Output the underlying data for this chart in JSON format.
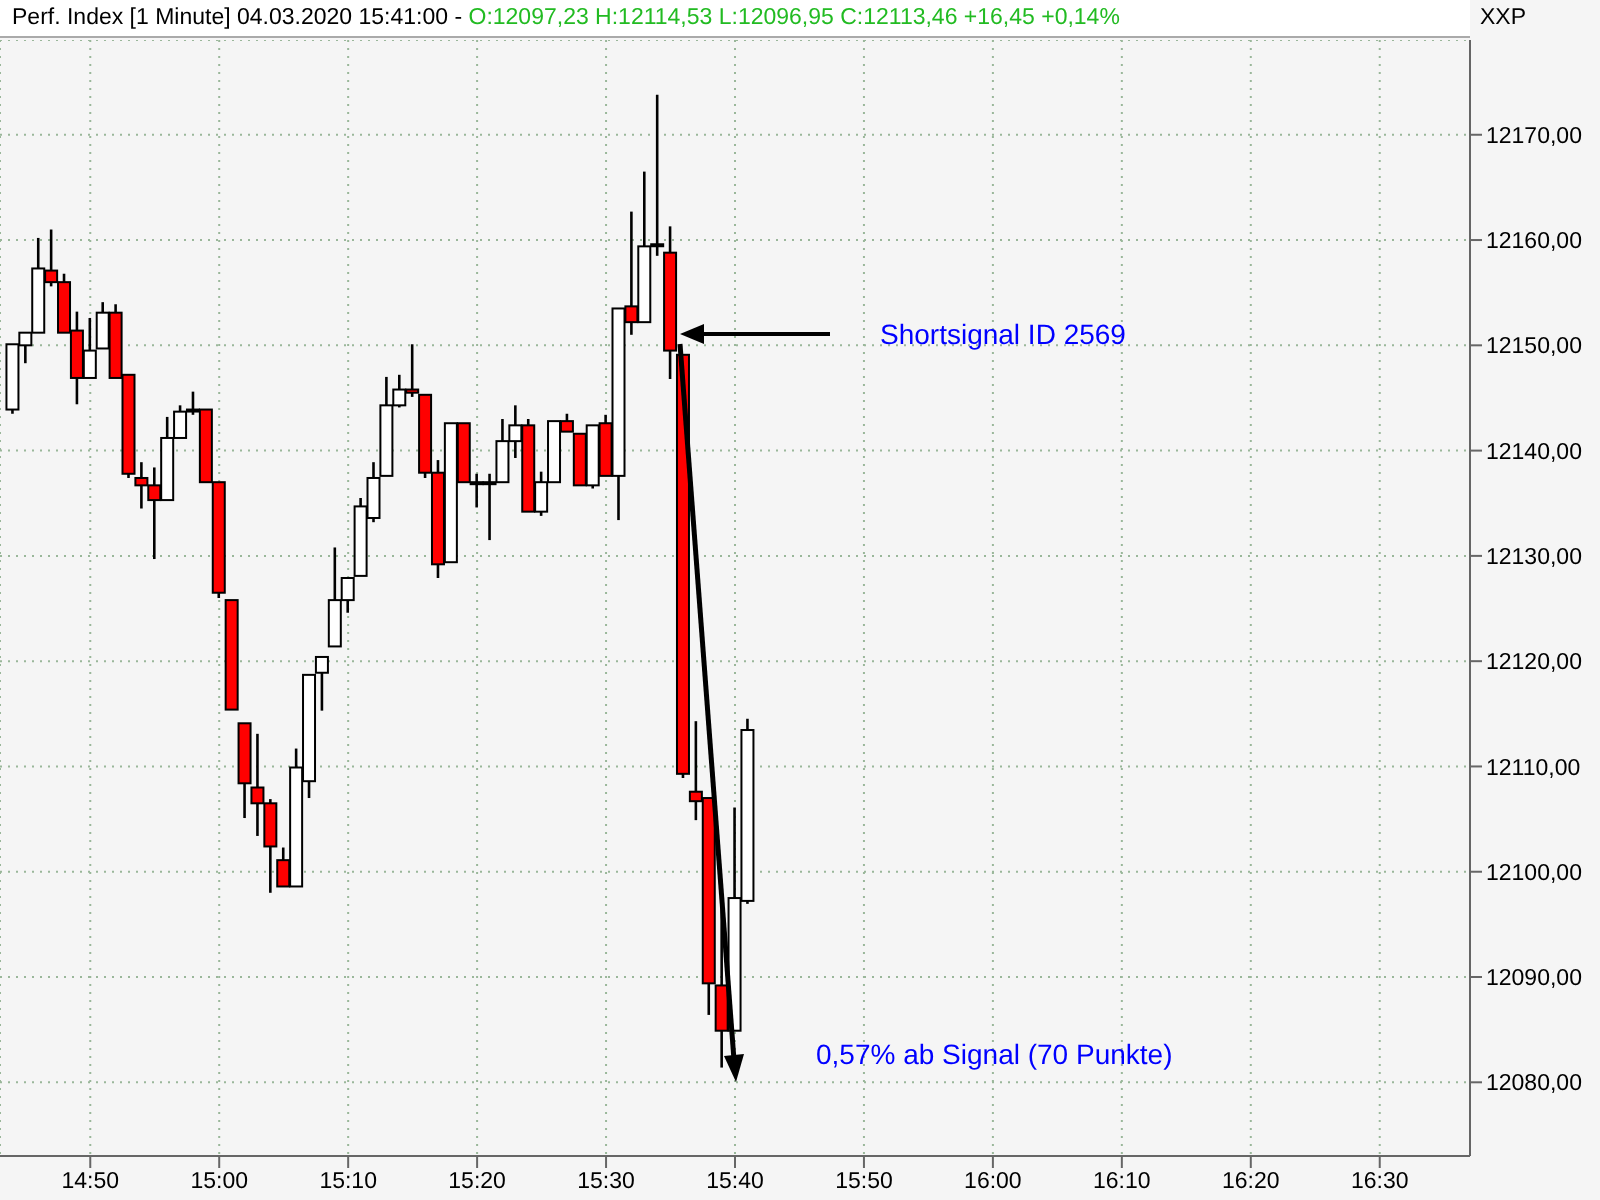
{
  "chart_data": {
    "type": "candlestick",
    "title": "Perf. Index [1 Minute] 04.03.2020 15:41:00 -",
    "subtitle": "O:12097,23 H:12114,53 L:12096,95 C:12113,46 +16,45 +0,14%",
    "ylabel": "XXP",
    "x": [
      "2020-03-04T14:44",
      "2020-03-04T14:45",
      "2020-03-04T14:46",
      "2020-03-04T14:47",
      "2020-03-04T14:48",
      "2020-03-04T14:49",
      "2020-03-04T14:50",
      "2020-03-04T14:51",
      "2020-03-04T14:52",
      "2020-03-04T14:53",
      "2020-03-04T14:54",
      "2020-03-04T14:55",
      "2020-03-04T14:56",
      "2020-03-04T14:57",
      "2020-03-04T14:58",
      "2020-03-04T14:59",
      "2020-03-04T15:00",
      "2020-03-04T15:01",
      "2020-03-04T15:02",
      "2020-03-04T15:03",
      "2020-03-04T15:04",
      "2020-03-04T15:05",
      "2020-03-04T15:06",
      "2020-03-04T15:07",
      "2020-03-04T15:08",
      "2020-03-04T15:09",
      "2020-03-04T15:10",
      "2020-03-04T15:11",
      "2020-03-04T15:12",
      "2020-03-04T15:13",
      "2020-03-04T15:14",
      "2020-03-04T15:15",
      "2020-03-04T15:16",
      "2020-03-04T15:17",
      "2020-03-04T15:18",
      "2020-03-04T15:19",
      "2020-03-04T15:20",
      "2020-03-04T15:21",
      "2020-03-04T15:22",
      "2020-03-04T15:23",
      "2020-03-04T15:24",
      "2020-03-04T15:25",
      "2020-03-04T15:26",
      "2020-03-04T15:27",
      "2020-03-04T15:28",
      "2020-03-04T15:29",
      "2020-03-04T15:30",
      "2020-03-04T15:31",
      "2020-03-04T15:32",
      "2020-03-04T15:33",
      "2020-03-04T15:34",
      "2020-03-04T15:35",
      "2020-03-04T15:36",
      "2020-03-04T15:37",
      "2020-03-04T15:38",
      "2020-03-04T15:39",
      "2020-03-04T15:40",
      "2020-03-04T15:41"
    ],
    "ohlc": [
      [
        12143.9,
        12150.1,
        12143.5,
        12150.1
      ],
      [
        12150.0,
        12151.2,
        12148.3,
        12151.2
      ],
      [
        12151.2,
        12160.2,
        12151.2,
        12157.3
      ],
      [
        12157.1,
        12161.0,
        12155.6,
        12156.0
      ],
      [
        12156.0,
        12156.8,
        12151.2,
        12151.2
      ],
      [
        12151.4,
        12153.2,
        12144.4,
        12146.9
      ],
      [
        12146.9,
        12152.6,
        12146.9,
        12149.5
      ],
      [
        12149.7,
        12154.1,
        12149.7,
        12153.1
      ],
      [
        12153.1,
        12153.9,
        12146.9,
        12146.9
      ],
      [
        12147.2,
        12147.2,
        12137.4,
        12137.8
      ],
      [
        12137.4,
        12138.9,
        12134.5,
        12136.7
      ],
      [
        12136.7,
        12138.4,
        12129.7,
        12135.3
      ],
      [
        12135.3,
        12143.2,
        12135.3,
        12141.2
      ],
      [
        12141.2,
        12144.3,
        12141.2,
        12143.7
      ],
      [
        12143.9,
        12145.6,
        12143.4,
        12143.9
      ],
      [
        12143.9,
        12143.9,
        12137.0,
        12137.0
      ],
      [
        12137.0,
        12137.0,
        12126.0,
        12126.5
      ],
      [
        12125.8,
        12125.8,
        12115.4,
        12115.4
      ],
      [
        12114.1,
        12114.1,
        12105.1,
        12108.4
      ],
      [
        12108.0,
        12113.1,
        12103.4,
        12106.5
      ],
      [
        12106.5,
        12106.9,
        12098.0,
        12102.4
      ],
      [
        12101.1,
        12102.3,
        12098.6,
        12098.6
      ],
      [
        12098.6,
        12111.7,
        12098.6,
        12109.9
      ],
      [
        12108.6,
        12118.7,
        12107.0,
        12118.7
      ],
      [
        12118.9,
        12120.4,
        12115.3,
        12120.4
      ],
      [
        12121.4,
        12130.8,
        12121.4,
        12125.8
      ],
      [
        12125.8,
        12127.9,
        12124.6,
        12127.9
      ],
      [
        12128.1,
        12135.5,
        12128.1,
        12134.7
      ],
      [
        12133.6,
        12138.9,
        12133.2,
        12137.4
      ],
      [
        12137.6,
        12147.0,
        12137.6,
        12144.3
      ],
      [
        12144.3,
        12147.2,
        12144.1,
        12145.8
      ],
      [
        12145.8,
        12150.1,
        12145.1,
        12145.5
      ],
      [
        12145.3,
        12145.3,
        12137.4,
        12137.9
      ],
      [
        12137.9,
        12139.1,
        12127.9,
        12129.2
      ],
      [
        12129.4,
        12142.6,
        12129.4,
        12142.6
      ],
      [
        12142.6,
        12142.6,
        12137.0,
        12137.0
      ],
      [
        12137.0,
        12137.8,
        12134.6,
        12137.0
      ],
      [
        12137.0,
        12137.8,
        12131.5,
        12137.0
      ],
      [
        12137.0,
        12143.0,
        12137.0,
        12140.9
      ],
      [
        12140.9,
        12144.3,
        12139.3,
        12142.4
      ],
      [
        12142.4,
        12143.0,
        12134.2,
        12134.2
      ],
      [
        12134.2,
        12138.0,
        12133.8,
        12137.0
      ],
      [
        12137.0,
        12142.8,
        12137.0,
        12142.8
      ],
      [
        12142.8,
        12143.5,
        12141.8,
        12141.8
      ],
      [
        12141.6,
        12141.6,
        12136.7,
        12136.7
      ],
      [
        12136.7,
        12142.4,
        12136.4,
        12142.4
      ],
      [
        12142.6,
        12143.4,
        12137.6,
        12137.6
      ],
      [
        12137.6,
        12153.5,
        12133.4,
        12153.5
      ],
      [
        12153.7,
        12162.7,
        12151.0,
        12152.2
      ],
      [
        12152.2,
        12166.5,
        12152.2,
        12159.4
      ],
      [
        12159.6,
        12173.8,
        12158.5,
        12159.6
      ],
      [
        12158.8,
        12161.3,
        12146.8,
        12149.5
      ],
      [
        12149.1,
        12149.1,
        12108.9,
        12109.3
      ],
      [
        12107.6,
        12114.3,
        12104.9,
        12106.7
      ],
      [
        12107.0,
        12107.0,
        12086.4,
        12089.4
      ],
      [
        12089.2,
        12098.0,
        12081.4,
        12084.9
      ],
      [
        12084.9,
        12106.1,
        12084.9,
        12097.5
      ],
      [
        12097.23,
        12114.53,
        12096.95,
        12113.46
      ]
    ],
    "colors": [
      "#ffffff",
      "#ffffff",
      "#ffffff",
      "#ff0000",
      "#ff0000",
      "#ff0000",
      "#ffffff",
      "#ffffff",
      "#ff0000",
      "#ff0000",
      "#ff0000",
      "#ff0000",
      "#ffffff",
      "#ffffff",
      "#ffffff",
      "#ff0000",
      "#ff0000",
      "#ff0000",
      "#ff0000",
      "#ff0000",
      "#ff0000",
      "#ff0000",
      "#ffffff",
      "#ffffff",
      "#ffffff",
      "#ffffff",
      "#ffffff",
      "#ffffff",
      "#ffffff",
      "#ffffff",
      "#ffffff",
      "#ff0000",
      "#ff0000",
      "#ff0000",
      "#ffffff",
      "#ff0000",
      "#ffffff",
      "#ffffff",
      "#ffffff",
      "#ffffff",
      "#ff0000",
      "#ffffff",
      "#ffffff",
      "#ff0000",
      "#ff0000",
      "#ffffff",
      "#ff0000",
      "#ffffff",
      "#ff0000",
      "#ffffff",
      "#ffffff",
      "#ff0000",
      "#ff0000",
      "#ff0000",
      "#ff0000",
      "#ff0000",
      "#ffffff",
      "#ffffff"
    ],
    "xlim": [
      "2020-03-04T14:43",
      "2020-03-04T16:37"
    ],
    "xticks": [
      {
        "value": "2020-03-04T14:50",
        "label": "14:50"
      },
      {
        "value": "2020-03-04T15:00",
        "label": "15:00"
      },
      {
        "value": "2020-03-04T15:10",
        "label": "15:10"
      },
      {
        "value": "2020-03-04T15:20",
        "label": "15:20"
      },
      {
        "value": "2020-03-04T15:30",
        "label": "15:30"
      },
      {
        "value": "2020-03-04T15:40",
        "label": "15:40"
      },
      {
        "value": "2020-03-04T15:50",
        "label": "15:50"
      },
      {
        "value": "2020-03-04T16:00",
        "label": "16:00"
      },
      {
        "value": "2020-03-04T16:10",
        "label": "16:10"
      },
      {
        "value": "2020-03-04T16:20",
        "label": "16:20"
      },
      {
        "value": "2020-03-04T16:30",
        "label": "16:30"
      }
    ],
    "ylim": [
      12073,
      12179
    ],
    "yticks": [
      {
        "value": 12080,
        "label": "12080,00"
      },
      {
        "value": 12090,
        "label": "12090,00"
      },
      {
        "value": 12100,
        "label": "12100,00"
      },
      {
        "value": 12110,
        "label": "12110,00"
      },
      {
        "value": 12120,
        "label": "12120,00"
      },
      {
        "value": 12130,
        "label": "12130,00"
      },
      {
        "value": 12140,
        "label": "12140,00"
      },
      {
        "value": 12150,
        "label": "12150,00"
      },
      {
        "value": 12160,
        "label": "12160,00"
      },
      {
        "value": 12170,
        "label": "12170,00"
      }
    ],
    "grid": true,
    "annotations": [
      "Shortsignal ID 2569",
      "0,57% ab Signal (70 Punkte)"
    ]
  }
}
